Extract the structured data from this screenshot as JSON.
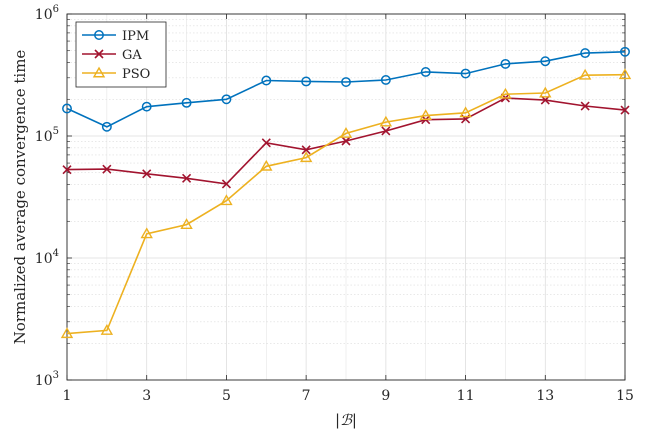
{
  "chart_data": {
    "type": "line",
    "xlabel": "|ℬ|",
    "ylabel": "Normalized average convergence time",
    "x_scale": "linear",
    "y_scale": "log",
    "xlim": [
      1,
      15
    ],
    "ylim": [
      1000,
      1000000
    ],
    "grid": true,
    "minor_grid": true,
    "legend_position": "top-left",
    "x": [
      1,
      2,
      3,
      4,
      5,
      6,
      7,
      8,
      9,
      10,
      11,
      12,
      13,
      14,
      15
    ],
    "x_ticks": [
      1,
      3,
      5,
      7,
      9,
      11,
      13,
      15
    ],
    "x_tick_labels": [
      "1",
      "3",
      "5",
      "7",
      "9",
      "11",
      "13",
      "15"
    ],
    "y_ticks": [
      1000,
      10000,
      100000,
      1000000
    ],
    "y_tick_labels": [
      {
        "base": "10",
        "exp": "3"
      },
      {
        "base": "10",
        "exp": "4"
      },
      {
        "base": "10",
        "exp": "5"
      },
      {
        "base": "10",
        "exp": "6"
      }
    ],
    "series": [
      {
        "name": "IPM",
        "color": "#0072BD",
        "marker": "circle",
        "values": [
          168000,
          119000,
          174000,
          187000,
          200000,
          285000,
          280000,
          277000,
          288000,
          335000,
          325000,
          390000,
          410000,
          478000,
          490000
        ]
      },
      {
        "name": "GA",
        "color": "#A2142F",
        "marker": "x",
        "values": [
          53000,
          53500,
          49000,
          45000,
          40500,
          88000,
          77000,
          91000,
          110000,
          136000,
          138000,
          205000,
          197000,
          176000,
          163000
        ]
      },
      {
        "name": "PSO",
        "color": "#EDB120",
        "marker": "triangle",
        "values": [
          2400,
          2550,
          15800,
          18800,
          29500,
          56500,
          66500,
          105000,
          130000,
          147000,
          155000,
          220000,
          225000,
          315000,
          318000
        ]
      }
    ]
  }
}
